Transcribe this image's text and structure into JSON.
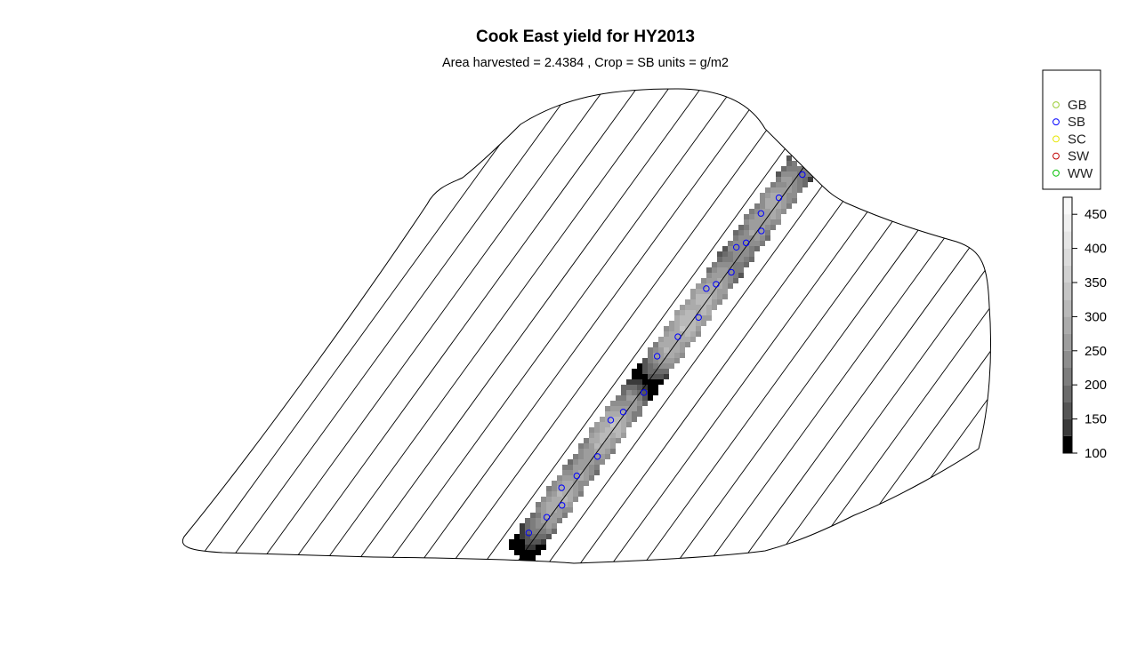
{
  "chart_data": {
    "type": "heatmap",
    "title": "Cook East yield for HY2013",
    "subtitle": "Area harvested =  2.4384 , Crop =  SB  units = g/m2",
    "legend": {
      "position": "top-right",
      "entries": [
        {
          "label": "GB",
          "color": "#9acd32"
        },
        {
          "label": "SB",
          "color": "#0000ff"
        },
        {
          "label": "SC",
          "color": "#e6e600"
        },
        {
          "label": "SW",
          "color": "#c00000"
        },
        {
          "label": "WW",
          "color": "#00c000"
        }
      ]
    },
    "colorbar": {
      "min": 100,
      "max": 475,
      "ticks": [
        100,
        150,
        200,
        250,
        300,
        350,
        400,
        450
      ],
      "breaks": [
        100,
        125,
        150,
        175,
        200,
        225,
        250,
        275,
        300,
        325,
        350,
        375,
        400,
        425,
        450,
        475
      ],
      "colors": [
        "#000000",
        "#3a3a3a",
        "#555555",
        "#6b6b6b",
        "#7d7d7d",
        "#8e8e8e",
        "#9d9d9d",
        "#ababab",
        "#b9b9b9",
        "#c5c5c5",
        "#d1d1d1",
        "#dbdbdb",
        "#e5e5e5",
        "#efefef",
        "#f8f8f8"
      ]
    },
    "strip_yield_samples": [
      {
        "t": 0.0,
        "v": 110
      },
      {
        "t": 0.05,
        "v": 240
      },
      {
        "t": 0.12,
        "v": 300
      },
      {
        "t": 0.22,
        "v": 260
      },
      {
        "t": 0.32,
        "v": 320
      },
      {
        "t": 0.4,
        "v": 240
      },
      {
        "t": 0.445,
        "v": 105
      },
      {
        "t": 0.5,
        "v": 280
      },
      {
        "t": 0.6,
        "v": 320
      },
      {
        "t": 0.68,
        "v": 300
      },
      {
        "t": 0.76,
        "v": 230
      },
      {
        "t": 0.83,
        "v": 260
      },
      {
        "t": 0.92,
        "v": 290
      },
      {
        "t": 1.0,
        "v": 230
      }
    ]
  }
}
